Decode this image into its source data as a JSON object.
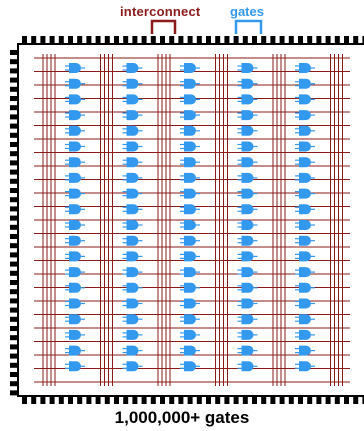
{
  "labels": {
    "interconnect": "interconnect",
    "gates": "gates",
    "caption": "1,000,000+ gates"
  },
  "colors": {
    "interconnect": "#8b1a1a",
    "gates": "#3399ee",
    "chip_border": "#000000",
    "caption": "#000000"
  },
  "grid": {
    "gate_columns": 5,
    "gate_rows": 20,
    "wire_bundle_count": 6,
    "wires_per_bundle": 4,
    "horizontal_wire_count": 25
  }
}
